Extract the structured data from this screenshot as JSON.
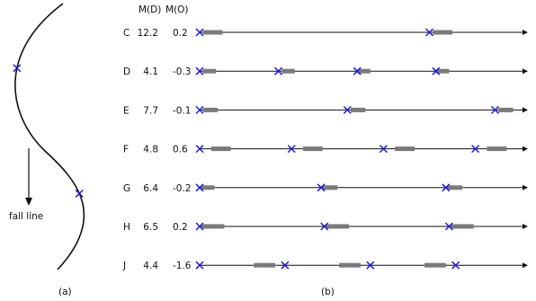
{
  "header": {
    "md_label": "M(D)",
    "mo_label": "M(O)"
  },
  "left_panel": {
    "arrow_label": "fall line",
    "caption": "(a)",
    "markers": [
      {
        "t": 0.26
      },
      {
        "t": 0.73
      }
    ]
  },
  "right_panel": {
    "caption": "(b)",
    "rows": [
      {
        "name": "C",
        "md": "12.2",
        "mo": "0.2",
        "marks": [
          {
            "x": 0.0,
            "bar": [
              0.01,
              0.07
            ]
          },
          {
            "x": 0.7,
            "bar": [
              0.71,
              0.77
            ]
          }
        ]
      },
      {
        "name": "D",
        "md": "4.1",
        "mo": "-0.3",
        "marks": [
          {
            "x": 0.0,
            "bar": [
              0.01,
              0.05
            ]
          },
          {
            "x": 0.24,
            "bar": [
              0.25,
              0.29
            ]
          },
          {
            "x": 0.48,
            "bar": [
              0.48,
              0.52
            ]
          },
          {
            "x": 0.72,
            "bar": [
              0.72,
              0.76
            ]
          }
        ]
      },
      {
        "name": "E",
        "md": "7.7",
        "mo": "-0.1",
        "marks": [
          {
            "x": 0.0,
            "bar": [
              0.01,
              0.055
            ]
          },
          {
            "x": 0.45,
            "bar": [
              0.46,
              0.505
            ]
          },
          {
            "x": 0.9,
            "bar": [
              0.91,
              0.955
            ]
          }
        ]
      },
      {
        "name": "F",
        "md": "4.8",
        "mo": "0.6",
        "marks": [
          {
            "x": 0.0,
            "bar": [
              0.035,
              0.095
            ]
          },
          {
            "x": 0.28,
            "bar": [
              0.315,
              0.375
            ]
          },
          {
            "x": 0.56,
            "bar": [
              0.595,
              0.655
            ]
          },
          {
            "x": 0.84,
            "bar": [
              0.875,
              0.935
            ]
          }
        ]
      },
      {
        "name": "G",
        "md": "6.4",
        "mo": "-0.2",
        "marks": [
          {
            "x": 0.0,
            "bar": [
              0.005,
              0.045
            ]
          },
          {
            "x": 0.37,
            "bar": [
              0.375,
              0.42
            ]
          },
          {
            "x": 0.75,
            "bar": [
              0.755,
              0.8
            ]
          }
        ]
      },
      {
        "name": "H",
        "md": "6.5",
        "mo": "0.2",
        "marks": [
          {
            "x": 0.0,
            "bar": [
              0.005,
              0.075
            ]
          },
          {
            "x": 0.38,
            "bar": [
              0.385,
              0.455
            ]
          },
          {
            "x": 0.76,
            "bar": [
              0.765,
              0.835
            ]
          }
        ]
      },
      {
        "name": "J",
        "md": "4.4",
        "mo": "-1.6",
        "marks": [
          {
            "x": 0.0,
            "bar": null
          },
          {
            "x": 0.26,
            "bar": [
              0.165,
              0.23
            ]
          },
          {
            "x": 0.52,
            "bar": [
              0.425,
              0.49
            ]
          },
          {
            "x": 0.78,
            "bar": [
              0.685,
              0.75
            ]
          }
        ]
      }
    ]
  },
  "colors": {
    "marker": "#1f1fd6",
    "bar": "#7a7a7a",
    "line": "#111111"
  }
}
